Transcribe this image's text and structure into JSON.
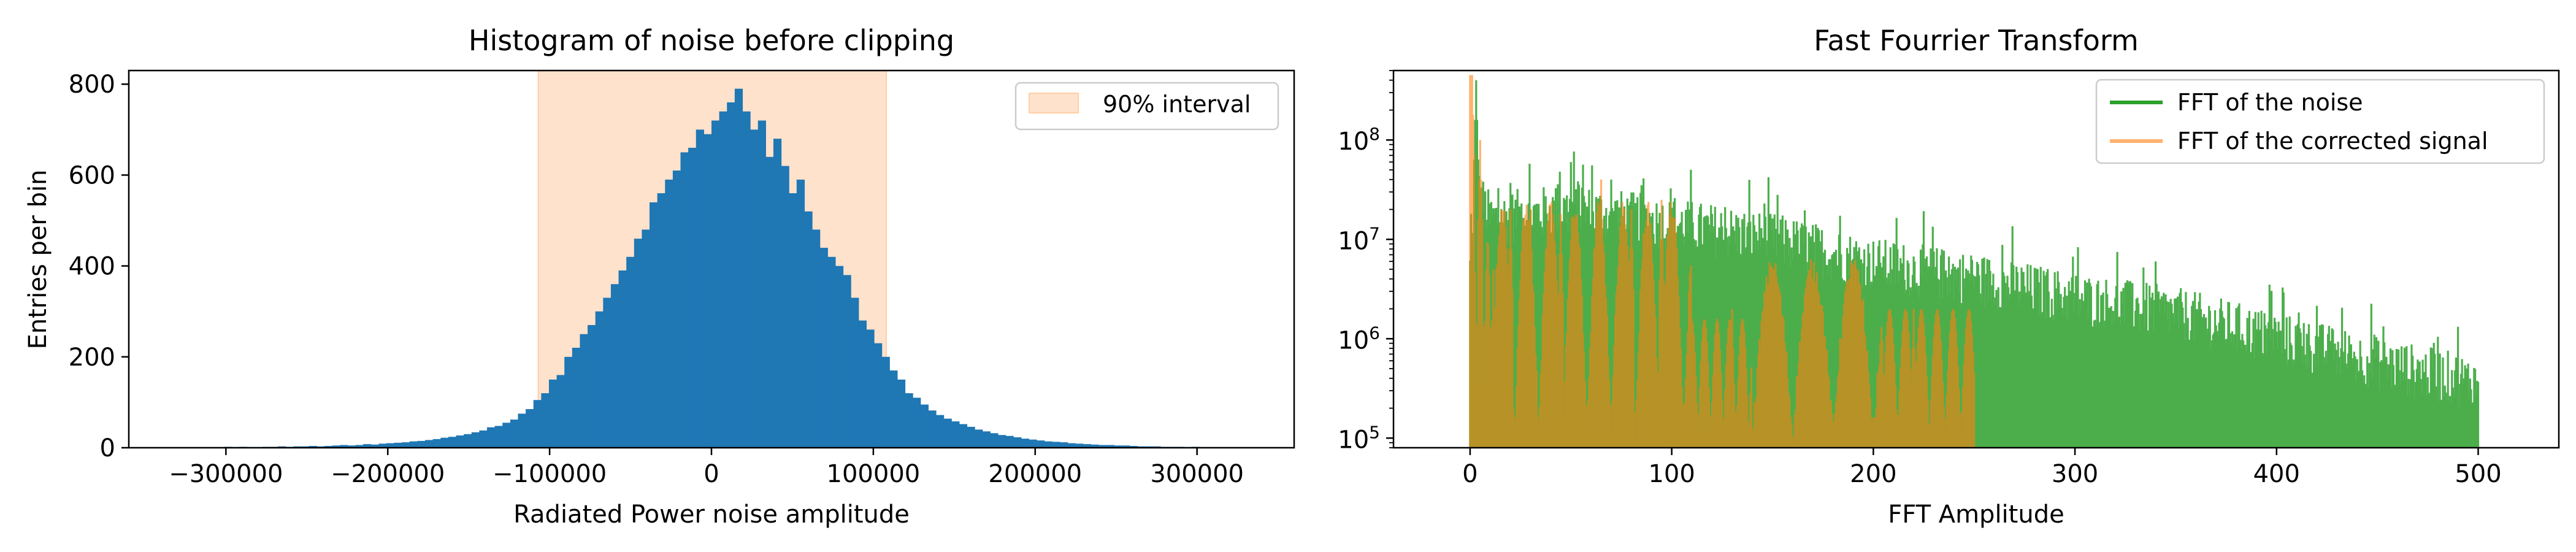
{
  "colors": {
    "hist_bar": "#1f77b4",
    "interval_fill": "#ffe2cc",
    "interval_edge": "#ffcfa6",
    "fft_noise": "#2ca02c",
    "fft_signal": "#ff7f0e"
  },
  "chart_data": [
    {
      "type": "bar",
      "title": "Histogram of noise before clipping",
      "xlabel": "Radiated Power noise amplitude",
      "ylabel": "Entries per bin",
      "xlim": [
        -360000,
        360000
      ],
      "ylim": [
        0,
        830
      ],
      "xticks": [
        -300000,
        -200000,
        -100000,
        0,
        100000,
        200000,
        300000
      ],
      "xtick_labels": [
        "−300000",
        "−200000",
        "−100000",
        "0",
        "100000",
        "200000",
        "300000"
      ],
      "yticks": [
        0,
        200,
        400,
        600,
        800
      ],
      "ytick_labels": [
        "0",
        "200",
        "400",
        "600",
        "800"
      ],
      "interval": {
        "label": "90% interval",
        "range": [
          -107000,
          108000
        ]
      },
      "legend": {
        "position": "upper right",
        "entries": [
          "90% interval"
        ]
      },
      "bin_range": [
        -330000,
        330000
      ],
      "values": [
        1,
        0,
        0,
        1,
        0,
        1,
        2,
        1,
        2,
        1,
        1,
        2,
        2,
        3,
        2,
        3,
        3,
        4,
        3,
        4,
        5,
        6,
        5,
        6,
        8,
        7,
        9,
        10,
        11,
        12,
        14,
        15,
        17,
        19,
        22,
        24,
        27,
        30,
        34,
        38,
        45,
        48,
        55,
        62,
        75,
        85,
        105,
        120,
        150,
        160,
        200,
        220,
        250,
        270,
        300,
        330,
        360,
        390,
        420,
        460,
        480,
        540,
        560,
        590,
        610,
        650,
        660,
        700,
        690,
        720,
        740,
        760,
        790,
        740,
        700,
        720,
        640,
        680,
        620,
        560,
        590,
        520,
        480,
        440,
        420,
        400,
        380,
        330,
        280,
        260,
        230,
        200,
        170,
        150,
        120,
        110,
        95,
        82,
        72,
        64,
        58,
        52,
        46,
        40,
        36,
        32,
        28,
        26,
        23,
        20,
        18,
        16,
        14,
        13,
        12,
        10,
        9,
        8,
        7,
        6,
        6,
        5,
        5,
        4,
        3,
        3,
        3,
        2,
        2,
        2,
        1,
        2,
        1,
        1,
        1,
        0,
        1,
        1
      ]
    },
    {
      "type": "line",
      "title": "Fast Fourrier Transform",
      "xlabel": "FFT Amplitude",
      "ylabel": "",
      "yscale": "log",
      "xlim": [
        -38,
        540
      ],
      "ylim": [
        80000,
        500000000
      ],
      "xticks": [
        0,
        100,
        200,
        300,
        400,
        500
      ],
      "xtick_labels": [
        "0",
        "100",
        "200",
        "300",
        "400",
        "500"
      ],
      "ytick_labels": [
        {
          "value": 100000,
          "base": "10",
          "exp": "5"
        },
        {
          "value": 1000000,
          "base": "10",
          "exp": "6"
        },
        {
          "value": 10000000,
          "base": "10",
          "exp": "7"
        },
        {
          "value": 100000000,
          "base": "10",
          "exp": "8"
        }
      ],
      "legend": {
        "position": "upper right",
        "entries": [
          "FFT of the noise",
          "FFT of the corrected signal"
        ]
      },
      "series": [
        {
          "name": "FFT of the noise",
          "color": "#2ca02c",
          "x_range": [
            0,
            500
          ],
          "envelope_x": [
            0,
            3,
            10,
            50,
            100,
            150,
            200,
            250,
            300,
            350,
            400,
            450,
            500
          ],
          "envelope_log10": [
            6.7,
            7.5,
            7.2,
            7.3,
            7.15,
            7.0,
            6.75,
            6.6,
            6.4,
            6.25,
            6.0,
            5.75,
            5.55
          ],
          "peaks": [
            {
              "x": 3,
              "y": 400000000
            },
            {
              "x": 50,
              "y": 60000000
            },
            {
              "x": 70,
              "y": 40000000
            },
            {
              "x": 85,
              "y": 35000000
            },
            {
              "x": 270,
              "y": 3000000
            },
            {
              "x": 340,
              "y": 6000000
            }
          ]
        },
        {
          "name": "FFT of the corrected signal",
          "color": "#ff7f0e",
          "x_range": [
            0,
            250
          ],
          "peaks": [
            {
              "x": 1,
              "y": 450000000
            },
            {
              "x": 5,
              "y": 100000000
            },
            {
              "x": 20,
              "y": 20000000
            },
            {
              "x": 30,
              "y": 20000000
            },
            {
              "x": 45,
              "y": 18000000
            },
            {
              "x": 65,
              "y": 40000000
            },
            {
              "x": 80,
              "y": 20000000
            },
            {
              "x": 95,
              "y": 25000000
            },
            {
              "x": 130,
              "y": 2000000
            },
            {
              "x": 150,
              "y": 5000000
            },
            {
              "x": 170,
              "y": 3000000
            },
            {
              "x": 195,
              "y": 2500000
            },
            {
              "x": 220,
              "y": 2000000
            },
            {
              "x": 240,
              "y": 1500000
            }
          ]
        }
      ]
    }
  ]
}
